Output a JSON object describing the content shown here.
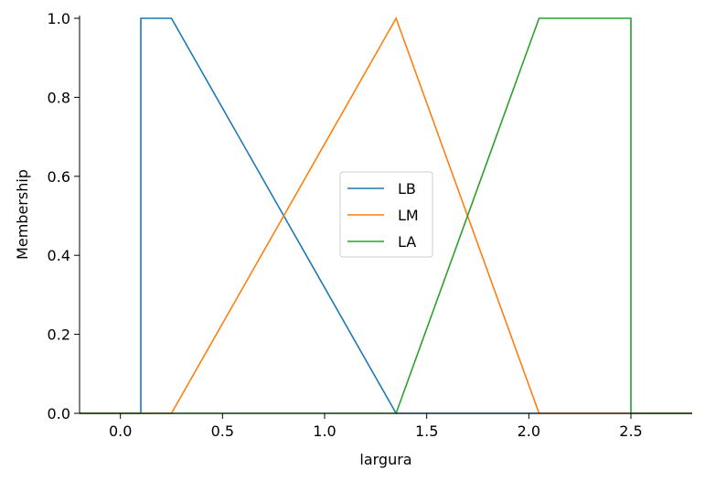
{
  "chart_data": {
    "type": "line",
    "title": "",
    "xlabel": "largura",
    "ylabel": "Membership",
    "xlim": [
      -0.2,
      2.8
    ],
    "ylim": [
      0,
      1.0
    ],
    "xticks": [
      0.0,
      0.5,
      1.0,
      1.5,
      2.0,
      2.5
    ],
    "xtick_labels": [
      "0.0",
      "0.5",
      "1.0",
      "1.5",
      "2.0",
      "2.5"
    ],
    "yticks": [
      0.0,
      0.2,
      0.4,
      0.6,
      0.8,
      1.0
    ],
    "ytick_labels": [
      "0.0",
      "0.2",
      "0.4",
      "0.6",
      "0.8",
      "1.0"
    ],
    "grid": false,
    "legend_position": "center",
    "series": [
      {
        "name": "LB",
        "color": "#1f77b4",
        "x": [
          -0.2,
          0.1,
          0.1,
          0.25,
          1.35,
          2.8
        ],
        "y": [
          0,
          0,
          1,
          1,
          0,
          0
        ]
      },
      {
        "name": "LM",
        "color": "#ff7f0e",
        "x": [
          -0.2,
          0.25,
          1.35,
          2.05,
          2.8
        ],
        "y": [
          0,
          0,
          1,
          0,
          0
        ]
      },
      {
        "name": "LA",
        "color": "#2ca02c",
        "x": [
          -0.2,
          1.35,
          2.05,
          2.5,
          2.5,
          2.8
        ],
        "y": [
          0,
          0,
          1,
          1,
          0,
          0
        ]
      }
    ]
  }
}
